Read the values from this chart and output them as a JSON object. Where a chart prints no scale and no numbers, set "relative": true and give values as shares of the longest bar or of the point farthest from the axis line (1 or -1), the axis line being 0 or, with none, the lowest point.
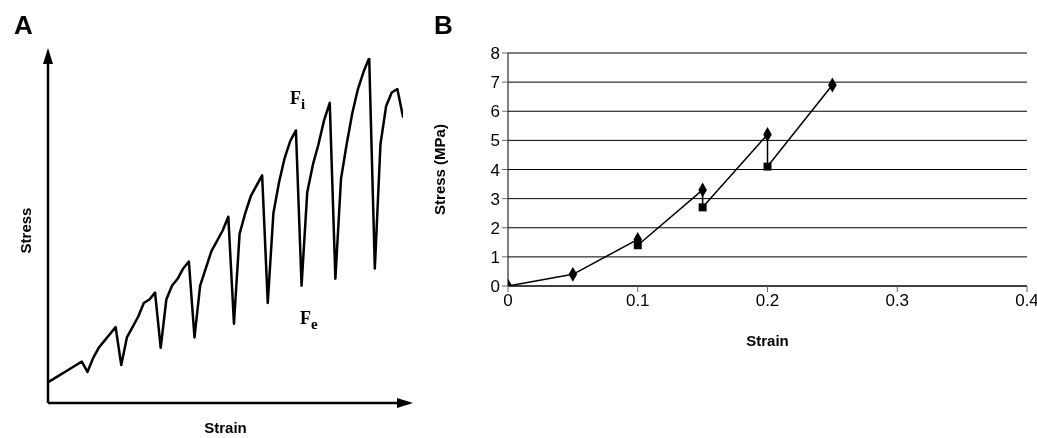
{
  "chart_data": [
    {
      "type": "line",
      "title": "A",
      "xlabel": "Strain",
      "ylabel": "Stress",
      "relative": true,
      "marker": "none",
      "categories": [
        null,
        null,
        null,
        null,
        null,
        null,
        null,
        null,
        null,
        null,
        null,
        null,
        null,
        null,
        null,
        null,
        null,
        null,
        null,
        null,
        null,
        null,
        null,
        null,
        null,
        null,
        null,
        null,
        null,
        null,
        null,
        null,
        null,
        null,
        null,
        null,
        null,
        null,
        null,
        null,
        null,
        null,
        null,
        null,
        null,
        null,
        null,
        null,
        null,
        null,
        null,
        null,
        null,
        null,
        null,
        null,
        null,
        null,
        null,
        null,
        null,
        null,
        null,
        null
      ],
      "series": [
        {
          "color": "#000000",
          "values": [
            0.06,
            0.07,
            0.08,
            0.09,
            0.1,
            0.11,
            0.12,
            0.09,
            0.13,
            0.16,
            0.18,
            0.2,
            0.22,
            0.11,
            0.19,
            0.22,
            0.25,
            0.29,
            0.3,
            0.32,
            0.16,
            0.3,
            0.34,
            0.36,
            0.39,
            0.41,
            0.19,
            0.34,
            0.39,
            0.44,
            0.47,
            0.5,
            0.54,
            0.23,
            0.49,
            0.55,
            0.6,
            0.63,
            0.66,
            0.29,
            0.55,
            0.64,
            0.71,
            0.76,
            0.79,
            0.34,
            0.61,
            0.69,
            0.75,
            0.82,
            0.87,
            0.36,
            0.65,
            0.75,
            0.84,
            0.91,
            0.96,
            1,
            0.39,
            0.75,
            0.86,
            0.9,
            0.91,
            0.83
          ]
        }
      ],
      "annotations": [
        "F$_{i}$",
        "F$_{e}$"
      ]
    },
    {
      "type": "line",
      "title": "B",
      "xlabel": "Strain",
      "ylabel": "Stress (MPa)",
      "xlim": [
        0,
        0.4
      ],
      "xticks": [
        0,
        0.1,
        0.2,
        0.3,
        0.4
      ],
      "ylim": [
        0,
        8
      ],
      "yticks": [
        0,
        1,
        2,
        3,
        4,
        5,
        6,
        7,
        8
      ],
      "grid": "y",
      "series": [
        {
          "type": "line",
          "color": "#000000",
          "marker": "none",
          "x": [
            0,
            0.05,
            0.1,
            0.1,
            0.15,
            0.15,
            0.2,
            0.2,
            0.25
          ],
          "values": [
            0,
            0.4,
            1.6,
            1.4,
            3.3,
            2.7,
            5.2,
            4.1,
            6.9
          ]
        },
        {
          "type": "scatter",
          "color": "#000000",
          "marker": "diamond",
          "x": [
            0,
            0.05,
            0.1,
            0.15,
            0.2,
            0.25
          ],
          "values": [
            0,
            0.4,
            1.6,
            3.3,
            5.2,
            6.9
          ]
        },
        {
          "type": "scatter",
          "color": "#000000",
          "marker": "square",
          "x": [
            0.1,
            0.15,
            0.2
          ],
          "values": [
            1.4,
            2.7,
            4.1
          ]
        }
      ]
    }
  ]
}
